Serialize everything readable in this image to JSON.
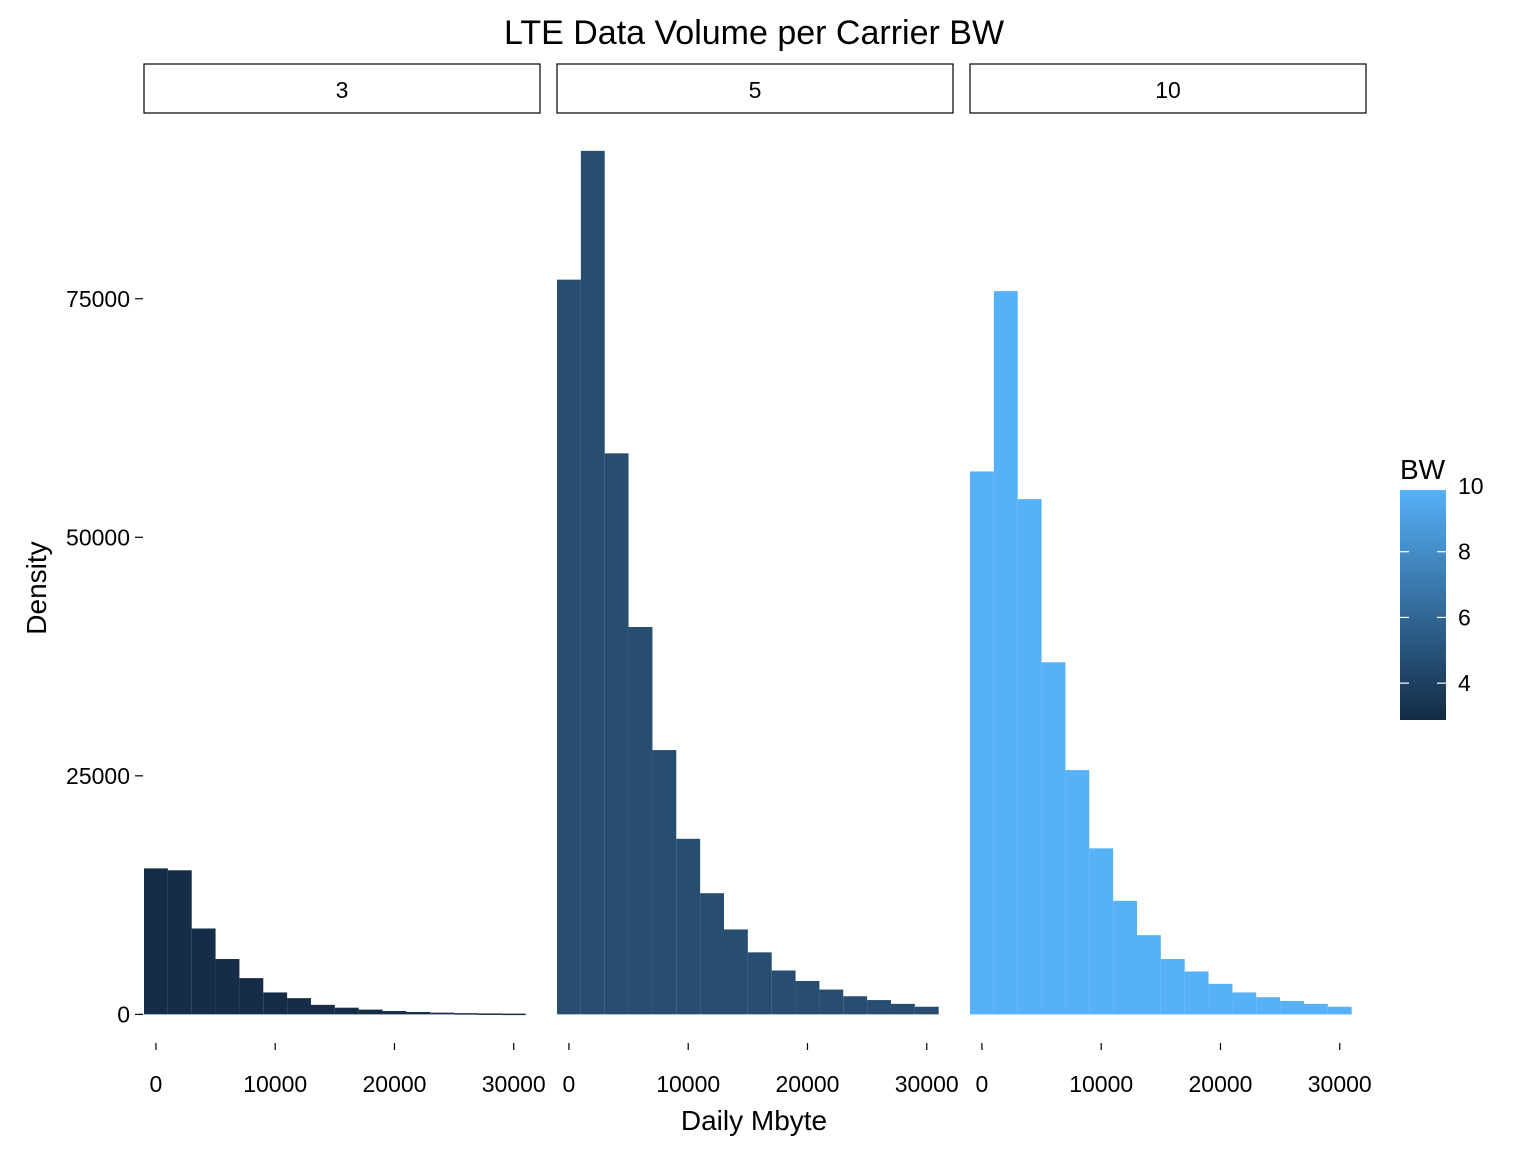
{
  "chart_data": {
    "type": "bar",
    "title": "LTE Data Volume per Carrier BW",
    "xlabel": "Daily Mbyte",
    "ylabel": "Density",
    "facet_variable": "BW",
    "x_ticks": [
      0,
      10000,
      20000,
      30000
    ],
    "x_tick_labels": [
      "0",
      "10000",
      "20000",
      "30000"
    ],
    "y_ticks": [
      0,
      25000,
      50000,
      75000
    ],
    "y_tick_labels": [
      "0",
      "25000",
      "50000",
      "75000"
    ],
    "xlim": [
      -1000,
      32200
    ],
    "ylim": [
      -3000,
      93000
    ],
    "bin_width": 2000,
    "bin_starts": [
      -1000,
      1000,
      3000,
      5000,
      7000,
      9000,
      11000,
      13000,
      15000,
      17000,
      19000,
      21000,
      23000,
      25000,
      27000,
      29000
    ],
    "grid": false,
    "panels": [
      {
        "label": "3",
        "bw": 3,
        "color": "#152d47",
        "values": [
          15300,
          15100,
          9000,
          5800,
          3800,
          2300,
          1700,
          1000,
          700,
          500,
          350,
          250,
          180,
          130,
          100,
          80
        ]
      },
      {
        "label": "5",
        "bw": 5,
        "color": "#274d70",
        "values": [
          77000,
          90500,
          58800,
          40600,
          27700,
          18400,
          12700,
          8900,
          6500,
          4600,
          3500,
          2600,
          1900,
          1500,
          1100,
          800
        ]
      },
      {
        "label": "10",
        "bw": 10,
        "color": "#56b1f7",
        "values": [
          56900,
          75800,
          54000,
          36900,
          25600,
          17400,
          11900,
          8300,
          5800,
          4500,
          3200,
          2300,
          1800,
          1400,
          1100,
          800
        ]
      }
    ],
    "legend": {
      "title": "BW",
      "position": "right",
      "min": 3,
      "max": 10,
      "low_color": "#132b43",
      "high_color": "#56b1f7",
      "ticks": [
        4,
        6,
        8,
        10
      ],
      "tick_labels": [
        "4",
        "6",
        "8",
        "10"
      ]
    }
  }
}
